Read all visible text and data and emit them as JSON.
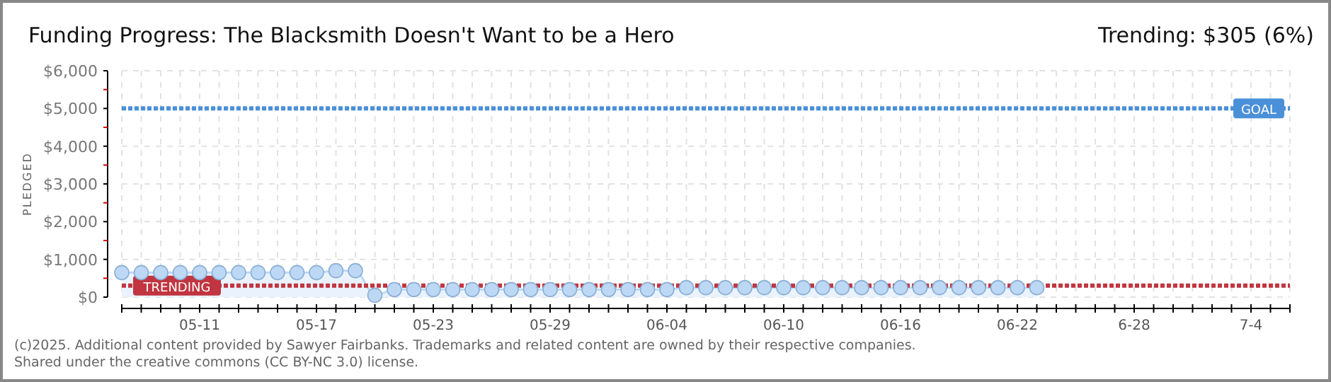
{
  "chart_data": {
    "type": "area",
    "title": "Funding Progress: The Blacksmith Doesn't Want to be a Hero",
    "subtitle": "Trending: $305 (6%)",
    "ylabel": "PLEDGED",
    "x": [
      "2025-05-07",
      "2025-05-08",
      "2025-05-09",
      "2025-05-10",
      "2025-05-11",
      "2025-05-12",
      "2025-05-13",
      "2025-05-14",
      "2025-05-15",
      "2025-05-16",
      "2025-05-17",
      "2025-05-18",
      "2025-05-19",
      "2025-05-20",
      "2025-05-21",
      "2025-05-22",
      "2025-05-23",
      "2025-05-24",
      "2025-05-25",
      "2025-05-26",
      "2025-05-27",
      "2025-05-28",
      "2025-05-29",
      "2025-05-30",
      "2025-05-31",
      "2025-06-01",
      "2025-06-02",
      "2025-06-03",
      "2025-06-04",
      "2025-06-05",
      "2025-06-06",
      "2025-06-07",
      "2025-06-08",
      "2025-06-09",
      "2025-06-10",
      "2025-06-11",
      "2025-06-12",
      "2025-06-13",
      "2025-06-14",
      "2025-06-15",
      "2025-06-16",
      "2025-06-17",
      "2025-06-18",
      "2025-06-19",
      "2025-06-20",
      "2025-06-21",
      "2025-06-22",
      "2025-06-23"
    ],
    "series": [
      {
        "color": "#bcd8f5",
        "values": [
          650,
          650,
          650,
          650,
          650,
          650,
          650,
          650,
          650,
          650,
          650,
          700,
          700,
          50,
          200,
          200,
          200,
          200,
          200,
          200,
          200,
          200,
          200,
          200,
          200,
          200,
          200,
          200,
          200,
          250,
          250,
          250,
          250,
          250,
          250,
          250,
          250,
          250,
          250,
          250,
          250,
          250,
          250,
          250,
          250,
          250,
          250,
          250
        ]
      }
    ],
    "marker": "circle",
    "grid": true,
    "xlim": [
      "2025-05-07",
      "2025-07-06"
    ],
    "xticks": [
      {
        "value": "2025-05-07",
        "label": null
      },
      {
        "value": "2025-05-08",
        "label": null
      },
      {
        "value": "2025-05-09",
        "label": null
      },
      {
        "value": "2025-05-10",
        "label": null
      },
      {
        "value": "2025-05-11",
        "label": "05-11"
      },
      {
        "value": "2025-05-12",
        "label": null
      },
      {
        "value": "2025-05-13",
        "label": null
      },
      {
        "value": "2025-05-14",
        "label": null
      },
      {
        "value": "2025-05-15",
        "label": null
      },
      {
        "value": "2025-05-16",
        "label": null
      },
      {
        "value": "2025-05-17",
        "label": "05-17"
      },
      {
        "value": "2025-05-18",
        "label": null
      },
      {
        "value": "2025-05-19",
        "label": null
      },
      {
        "value": "2025-05-20",
        "label": null
      },
      {
        "value": "2025-05-21",
        "label": null
      },
      {
        "value": "2025-05-22",
        "label": null
      },
      {
        "value": "2025-05-23",
        "label": "05-23"
      },
      {
        "value": "2025-05-24",
        "label": null
      },
      {
        "value": "2025-05-25",
        "label": null
      },
      {
        "value": "2025-05-26",
        "label": null
      },
      {
        "value": "2025-05-27",
        "label": null
      },
      {
        "value": "2025-05-28",
        "label": null
      },
      {
        "value": "2025-05-29",
        "label": "05-29"
      },
      {
        "value": "2025-05-30",
        "label": null
      },
      {
        "value": "2025-05-31",
        "label": null
      },
      {
        "value": "2025-06-01",
        "label": null
      },
      {
        "value": "2025-06-02",
        "label": null
      },
      {
        "value": "2025-06-03",
        "label": null
      },
      {
        "value": "2025-06-04",
        "label": "06-04"
      },
      {
        "value": "2025-06-05",
        "label": null
      },
      {
        "value": "2025-06-06",
        "label": null
      },
      {
        "value": "2025-06-07",
        "label": null
      },
      {
        "value": "2025-06-08",
        "label": null
      },
      {
        "value": "2025-06-09",
        "label": null
      },
      {
        "value": "2025-06-10",
        "label": "06-10"
      },
      {
        "value": "2025-06-11",
        "label": null
      },
      {
        "value": "2025-06-12",
        "label": null
      },
      {
        "value": "2025-06-13",
        "label": null
      },
      {
        "value": "2025-06-14",
        "label": null
      },
      {
        "value": "2025-06-15",
        "label": null
      },
      {
        "value": "2025-06-16",
        "label": "06-16"
      },
      {
        "value": "2025-06-17",
        "label": null
      },
      {
        "value": "2025-06-18",
        "label": null
      },
      {
        "value": "2025-06-19",
        "label": null
      },
      {
        "value": "2025-06-20",
        "label": null
      },
      {
        "value": "2025-06-21",
        "label": null
      },
      {
        "value": "2025-06-22",
        "label": "06-22"
      },
      {
        "value": "2025-06-23",
        "label": null
      },
      {
        "value": "2025-06-24",
        "label": null
      },
      {
        "value": "2025-06-25",
        "label": null
      },
      {
        "value": "2025-06-26",
        "label": null
      },
      {
        "value": "2025-06-27",
        "label": null
      },
      {
        "value": "2025-06-28",
        "label": "6-28"
      },
      {
        "value": "2025-06-29",
        "label": null
      },
      {
        "value": "2025-06-30",
        "label": null
      },
      {
        "value": "2025-07-01",
        "label": null
      },
      {
        "value": "2025-07-02",
        "label": null
      },
      {
        "value": "2025-07-03",
        "label": null
      },
      {
        "value": "2025-07-04",
        "label": "7-4"
      },
      {
        "value": "2025-07-05",
        "label": null
      },
      {
        "value": "2025-07-06",
        "label": null
      }
    ],
    "ylim": [
      0,
      6000
    ],
    "yticks": [
      {
        "value": 0,
        "label": "$0"
      },
      {
        "value": 500,
        "label": null
      },
      {
        "value": 1000,
        "label": "$1,000"
      },
      {
        "value": 1500,
        "label": null
      },
      {
        "value": 2000,
        "label": "$2,000"
      },
      {
        "value": 2500,
        "label": null
      },
      {
        "value": 3000,
        "label": "$3,000"
      },
      {
        "value": 3500,
        "label": null
      },
      {
        "value": 4000,
        "label": "$4,000"
      },
      {
        "value": 4500,
        "label": null
      },
      {
        "value": 5000,
        "label": "$5,000"
      },
      {
        "value": 5500,
        "label": null
      },
      {
        "value": 6000,
        "label": "$6,000"
      }
    ],
    "ref_lines": [
      {
        "axis": "y",
        "value": 5000,
        "label": "GOAL",
        "color": "#4a90d9",
        "line_style": "dotted"
      },
      {
        "axis": "y",
        "value": 305,
        "label": "TRENDING",
        "color": "#c0353f",
        "line_style": "dotted"
      }
    ],
    "annotations": [
      "(c)2025. Additional content provided by Sawyer Fairbanks. Trademarks and related content are owned by their respective companies.",
      "Shared under the creative commons (CC BY-NC 3.0) license."
    ]
  }
}
